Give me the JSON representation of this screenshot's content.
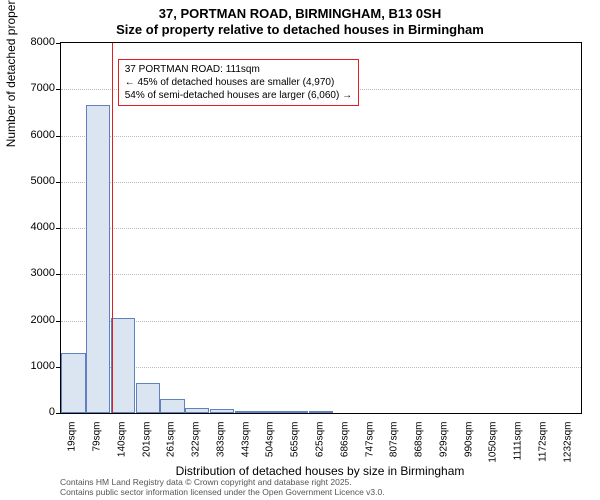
{
  "title_line1": "37, PORTMAN ROAD, BIRMINGHAM, B13 0SH",
  "title_line2": "Size of property relative to detached houses in Birmingham",
  "chart": {
    "type": "histogram",
    "ylabel": "Number of detached properties",
    "xlabel": "Distribution of detached houses by size in Birmingham",
    "ylim": [
      0,
      8000
    ],
    "ytick_step": 1000,
    "yticks": [
      0,
      1000,
      2000,
      3000,
      4000,
      5000,
      6000,
      7000,
      8000
    ],
    "xtick_labels": [
      "19sqm",
      "79sqm",
      "140sqm",
      "201sqm",
      "261sqm",
      "322sqm",
      "383sqm",
      "443sqm",
      "504sqm",
      "565sqm",
      "625sqm",
      "686sqm",
      "747sqm",
      "807sqm",
      "868sqm",
      "929sqm",
      "990sqm",
      "1050sqm",
      "1111sqm",
      "1172sqm",
      "1232sqm"
    ],
    "bar_values": [
      1300,
      6650,
      2050,
      650,
      300,
      100,
      80,
      50,
      30,
      20,
      20,
      0,
      0,
      0,
      0,
      0,
      0,
      0,
      0,
      0,
      0
    ],
    "bar_fill": "#dbe5f1",
    "bar_border": "#6080c0",
    "background_color": "#ffffff",
    "grid_color": "#bbbbbb",
    "marker_line_color": "#e02020",
    "marker_position_index": 1.55,
    "annotation": {
      "line1": "37 PORTMAN ROAD: 111sqm",
      "line2": "← 45% of detached houses are smaller (4,970)",
      "line3": "54% of semi-detached houses are larger (6,060) →",
      "border_color": "#e02020"
    }
  },
  "footer_line1": "Contains HM Land Registry data © Crown copyright and database right 2025.",
  "footer_line2": "Contains public sector information licensed under the Open Government Licence v3.0."
}
